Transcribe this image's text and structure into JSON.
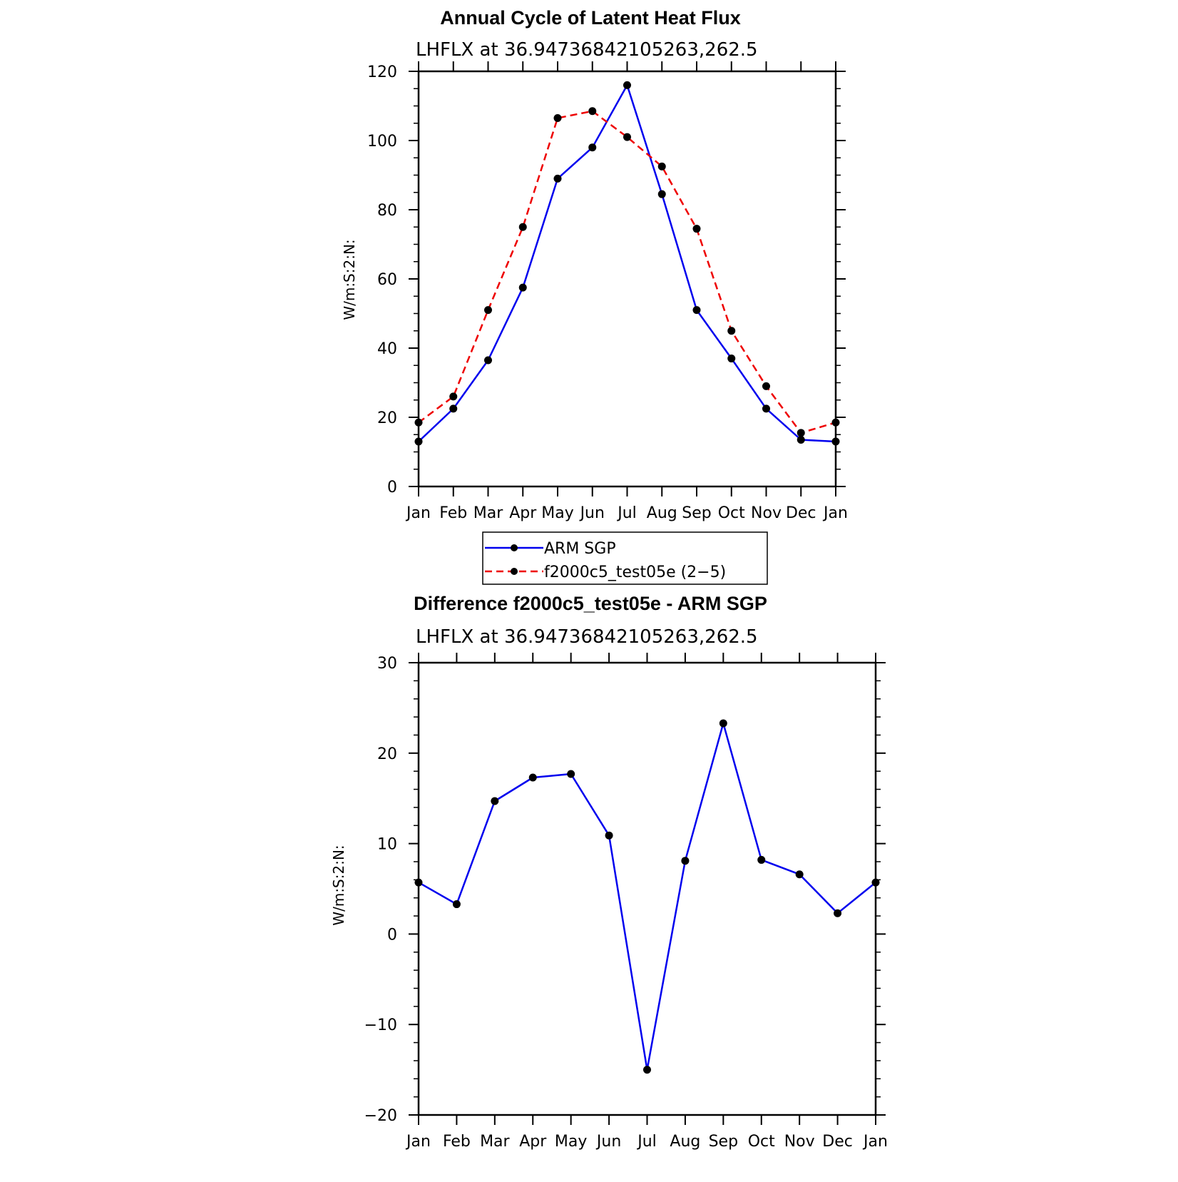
{
  "chart_data": [
    {
      "type": "line",
      "title": "Annual Cycle of Latent Heat Flux",
      "subtitle": "LHFLX at 36.94736842105263,262.5",
      "ylabel": "W/m:S:2:N:",
      "xlabel": "",
      "categories": [
        "Jan",
        "Feb",
        "Mar",
        "Apr",
        "May",
        "Jun",
        "Jul",
        "Aug",
        "Sep",
        "Oct",
        "Nov",
        "Dec",
        "Jan"
      ],
      "ylim": [
        0,
        120
      ],
      "yticks": [
        "0",
        "20",
        "40",
        "60",
        "80",
        "100",
        "120"
      ],
      "series": [
        {
          "name": "ARM SGP",
          "color": "#0000ee",
          "dash": "solid",
          "values": [
            13,
            22.5,
            36.5,
            57.5,
            89,
            98,
            116,
            84.5,
            51,
            37,
            22.5,
            13.5,
            13
          ]
        },
        {
          "name": "f2000c5_test05e (2−5)",
          "color": "#ee0000",
          "dash": "dashed",
          "values": [
            18.5,
            26,
            51,
            75,
            106.5,
            108.5,
            101,
            92.5,
            74.5,
            45,
            29,
            15.5,
            18.5
          ]
        }
      ],
      "legend": "bottom-center"
    },
    {
      "type": "line",
      "title": "Difference f2000c5_test05e - ARM SGP",
      "subtitle": "LHFLX at 36.94736842105263,262.5",
      "ylabel": "W/m:S:2:N:",
      "xlabel": "",
      "categories": [
        "Jan",
        "Feb",
        "Mar",
        "Apr",
        "May",
        "Jun",
        "Jul",
        "Aug",
        "Sep",
        "Oct",
        "Nov",
        "Dec",
        "Jan"
      ],
      "ylim": [
        -20,
        30
      ],
      "yticks": [
        "−20",
        "−10",
        "0",
        "10",
        "20",
        "30"
      ],
      "series": [
        {
          "color": "#0000ee",
          "dash": "solid",
          "values": [
            5.7,
            3.3,
            14.7,
            17.3,
            17.7,
            10.9,
            -15,
            8.1,
            23.3,
            8.2,
            6.6,
            2.3,
            5.7
          ]
        }
      ]
    }
  ]
}
